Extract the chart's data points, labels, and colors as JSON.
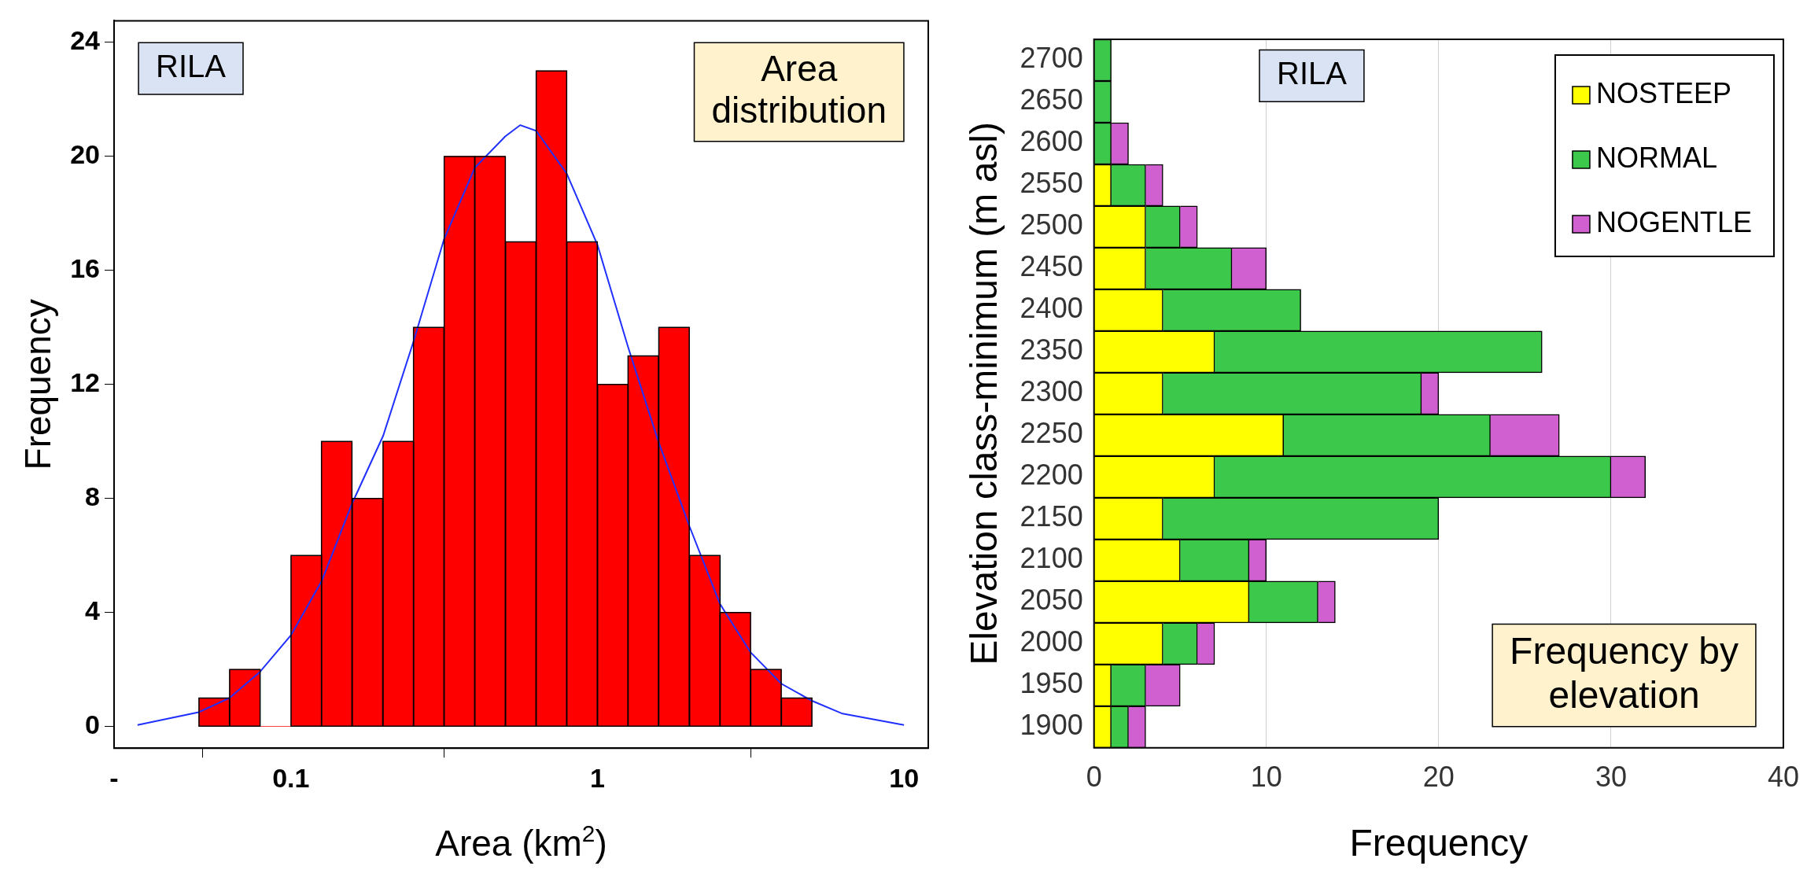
{
  "chart_data": [
    {
      "type": "histogram",
      "xlabel": "Area (km$^{2}$)",
      "ylabel": "Frequency",
      "annotations": [
        "RILA",
        "Area distribution"
      ],
      "bins": [
        0.0501,
        0.0631,
        0.0794,
        0.1,
        0.126,
        0.158,
        0.2,
        0.251,
        0.316,
        0.398,
        0.501,
        0.631,
        0.794,
        1,
        1.26,
        1.58,
        2,
        2.51,
        3.16,
        3.98,
        5.01
      ],
      "values": [
        1,
        2,
        0,
        6,
        10,
        8,
        10,
        14,
        20,
        20,
        17,
        23,
        17,
        12,
        13,
        14,
        6,
        4,
        2,
        1
      ],
      "color": "#ff0000",
      "log": "x",
      "xlim": [
        0.0265,
        12
      ],
      "xticks": [
        {
          "value": 0.0265,
          "label": "-"
        },
        0.1,
        1,
        10
      ],
      "ylim": [
        -0.76,
        24.76
      ],
      "yticks": [
        0,
        4,
        8,
        12,
        16,
        20,
        24
      ],
      "grid": false,
      "legend": false,
      "series": [
        {
          "type": "line",
          "color": "#2030ff",
          "x": [
            0.0316,
            0.05,
            0.063,
            0.079,
            0.1,
            0.126,
            0.158,
            0.2,
            0.251,
            0.316,
            0.398,
            0.5,
            0.56,
            0.631,
            0.794,
            1,
            1.26,
            1.58,
            2,
            2.51,
            3.16,
            3.98,
            5.01,
            6.3,
            10
          ],
          "values": [
            0.05,
            0.5,
            1.0,
            1.9,
            3.2,
            5.1,
            7.8,
            10.2,
            13.5,
            17.1,
            19.6,
            20.7,
            21.1,
            20.9,
            19.4,
            16.9,
            13.3,
            10,
            7,
            4.3,
            2.6,
            1.5,
            0.9,
            0.45,
            0.05
          ]
        }
      ]
    },
    {
      "type": "bar",
      "orientation": "horizontal",
      "stacked": true,
      "xlabel": "Frequency",
      "ylabel": "Elevation class-minimum (m asl)",
      "annotations": [
        "RILA",
        "Frequency by elevation"
      ],
      "categories": [
        "2700",
        "2650",
        "2600",
        "2550",
        "2500",
        "2450",
        "2400",
        "2350",
        "2300",
        "2250",
        "2200",
        "2150",
        "2100",
        "2050",
        "2000",
        "1950",
        "1900"
      ],
      "series": [
        {
          "name": "NOSTEEP",
          "color": "#ffff00",
          "values": [
            0,
            0,
            0,
            1,
            3,
            3,
            4,
            7,
            4,
            11,
            7,
            4,
            5,
            9,
            4,
            1,
            1
          ]
        },
        {
          "name": "NORMAL",
          "color": "#3cc84a",
          "values": [
            1,
            1,
            1,
            2,
            2,
            5,
            8,
            19,
            15,
            12,
            23,
            16,
            4,
            4,
            2,
            2,
            1
          ]
        },
        {
          "name": "NOGENTLE",
          "color": "#d060d0",
          "values": [
            0,
            0,
            1,
            1,
            1,
            2,
            0,
            0,
            1,
            4,
            2,
            0,
            1,
            1,
            1,
            2,
            1
          ]
        }
      ],
      "xlim": [
        0,
        40
      ],
      "xticks": [
        0,
        10,
        20,
        30,
        40
      ],
      "grid": "x",
      "legend": "top right"
    }
  ]
}
